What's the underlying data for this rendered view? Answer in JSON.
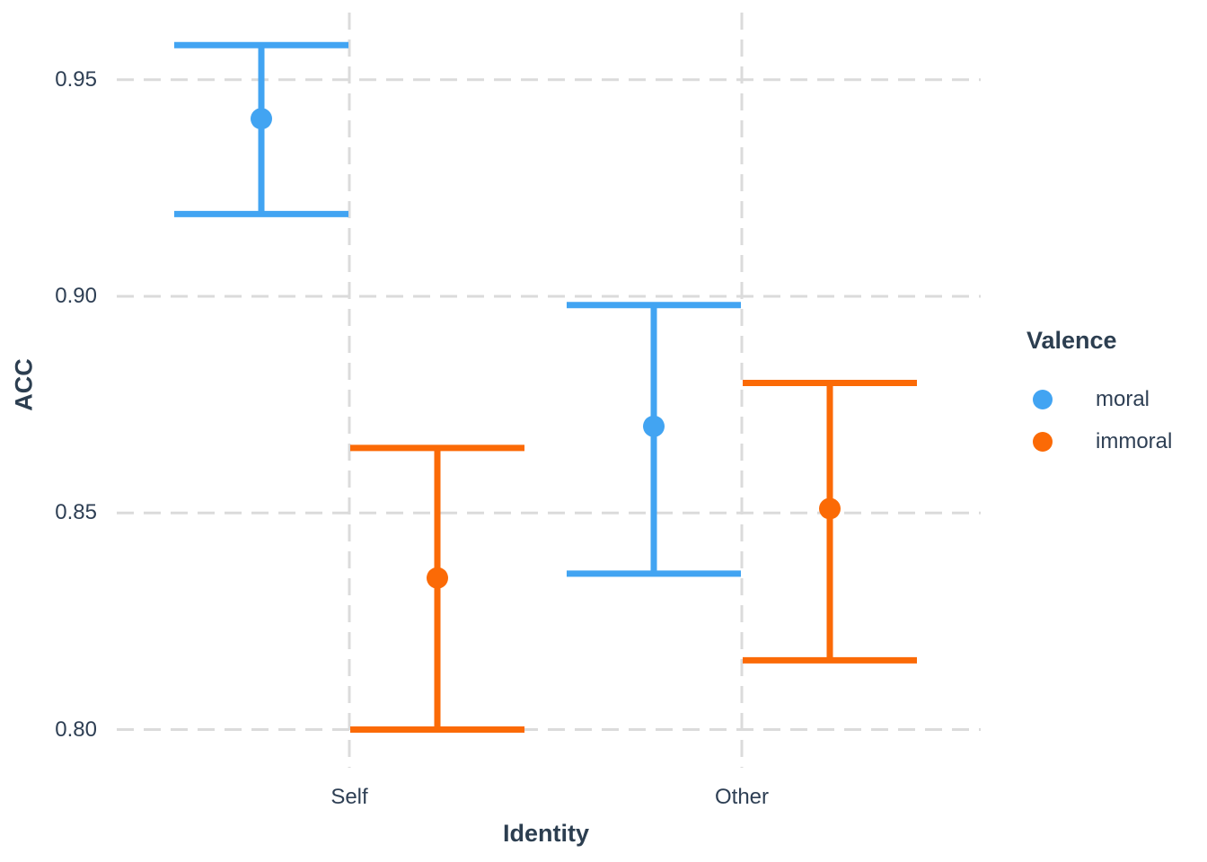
{
  "figure": {
    "background": "#FFFFFF"
  },
  "chart_data": {
    "type": "pointrange",
    "title": "",
    "xlabel": "Identity",
    "ylabel": "ACC",
    "categories": [
      "Self",
      "Other"
    ],
    "yticks": [
      0.8,
      0.85,
      0.9,
      0.95
    ],
    "ytick_labels": [
      "0.80",
      "0.85",
      "0.90",
      "0.95"
    ],
    "ylim": [
      0.7912,
      0.9655
    ],
    "grid": {
      "horizontal": true,
      "vertical": true,
      "style": "dashed"
    },
    "legend": {
      "title": "Valence",
      "position": "right"
    },
    "series": [
      {
        "name": "moral",
        "color": "#42A4F2",
        "points": [
          {
            "category": "Self",
            "mean": 0.941,
            "lower": 0.919,
            "upper": 0.958
          },
          {
            "category": "Other",
            "mean": 0.87,
            "lower": 0.836,
            "upper": 0.898
          }
        ]
      },
      {
        "name": "immoral",
        "color": "#FB6A06",
        "points": [
          {
            "category": "Self",
            "mean": 0.835,
            "lower": 0.8,
            "upper": 0.865
          },
          {
            "category": "Other",
            "mean": 0.851,
            "lower": 0.816,
            "upper": 0.88
          }
        ]
      }
    ],
    "colors": {
      "text_title": "#2C3E50",
      "text_tick": "#2E3F54",
      "grid": "#DBDBDB"
    }
  }
}
